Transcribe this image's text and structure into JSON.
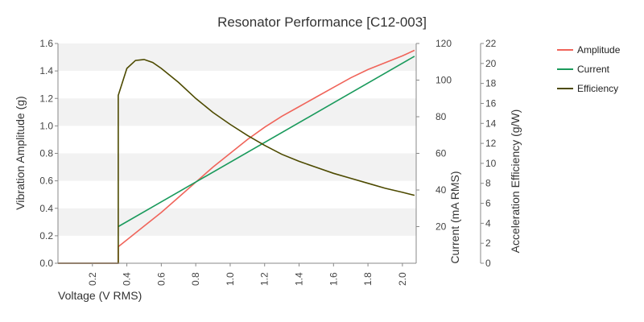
{
  "chart_data": {
    "type": "line",
    "title": "Resonator Performance [C12-003]",
    "xlabel": "Voltage (V RMS)",
    "ylabel_left": "Vibration Amplitude (g)",
    "ylabel_right1": "Current (mA RMS)",
    "ylabel_right2": "Acceleration Efficiency (g/W)",
    "xlim": [
      0,
      2.08
    ],
    "ylim_left": [
      0,
      1.6
    ],
    "ylim_right1": [
      0,
      120
    ],
    "ylim_right2": [
      0,
      22
    ],
    "x_ticks": [
      "0.2",
      "0.4",
      "0.6",
      "0.8",
      "1.0",
      "1.2",
      "1.4",
      "1.6",
      "1.8",
      "2.0"
    ],
    "y_left_ticks": [
      "0.0",
      "0.2",
      "0.4",
      "0.6",
      "0.8",
      "1.0",
      "1.2",
      "1.4",
      "1.6"
    ],
    "y_right1_ticks": [
      "20",
      "40",
      "60",
      "80",
      "100",
      "120"
    ],
    "y_right2_ticks": [
      "0",
      "2",
      "4",
      "6",
      "8",
      "10",
      "12",
      "14",
      "16",
      "18",
      "20",
      "22"
    ],
    "grid": "alternating horizontal bands",
    "legend_position": "top-right",
    "series": [
      {
        "name": "Amplitude",
        "axis": "left",
        "color": "#f0645a",
        "points": [
          [
            0.0,
            0.0
          ],
          [
            0.35,
            0.0
          ],
          [
            0.35,
            0.12
          ],
          [
            0.4,
            0.17
          ],
          [
            0.5,
            0.27
          ],
          [
            0.6,
            0.37
          ],
          [
            0.7,
            0.48
          ],
          [
            0.8,
            0.59
          ],
          [
            0.9,
            0.7
          ],
          [
            1.0,
            0.8
          ],
          [
            1.1,
            0.9
          ],
          [
            1.2,
            0.99
          ],
          [
            1.3,
            1.07
          ],
          [
            1.4,
            1.14
          ],
          [
            1.5,
            1.21
          ],
          [
            1.6,
            1.28
          ],
          [
            1.7,
            1.35
          ],
          [
            1.8,
            1.41
          ],
          [
            1.9,
            1.46
          ],
          [
            2.0,
            1.51
          ],
          [
            2.07,
            1.55
          ]
        ]
      },
      {
        "name": "Current",
        "axis": "right1",
        "color": "#1a9a5c",
        "points": [
          [
            0.35,
            20
          ],
          [
            2.07,
            113
          ]
        ]
      },
      {
        "name": "Efficiency",
        "axis": "right2",
        "color": "#4d4a00",
        "points": [
          [
            0.0,
            0.0
          ],
          [
            0.35,
            0.0
          ],
          [
            0.35,
            16.8
          ],
          [
            0.4,
            19.5
          ],
          [
            0.45,
            20.3
          ],
          [
            0.5,
            20.4
          ],
          [
            0.55,
            20.1
          ],
          [
            0.6,
            19.5
          ],
          [
            0.7,
            18.1
          ],
          [
            0.8,
            16.5
          ],
          [
            0.9,
            15.1
          ],
          [
            1.0,
            13.9
          ],
          [
            1.1,
            12.8
          ],
          [
            1.2,
            11.8
          ],
          [
            1.3,
            10.9
          ],
          [
            1.4,
            10.2
          ],
          [
            1.5,
            9.6
          ],
          [
            1.6,
            9.0
          ],
          [
            1.7,
            8.5
          ],
          [
            1.8,
            8.0
          ],
          [
            1.9,
            7.5
          ],
          [
            2.0,
            7.1
          ],
          [
            2.07,
            6.8
          ]
        ]
      }
    ]
  }
}
